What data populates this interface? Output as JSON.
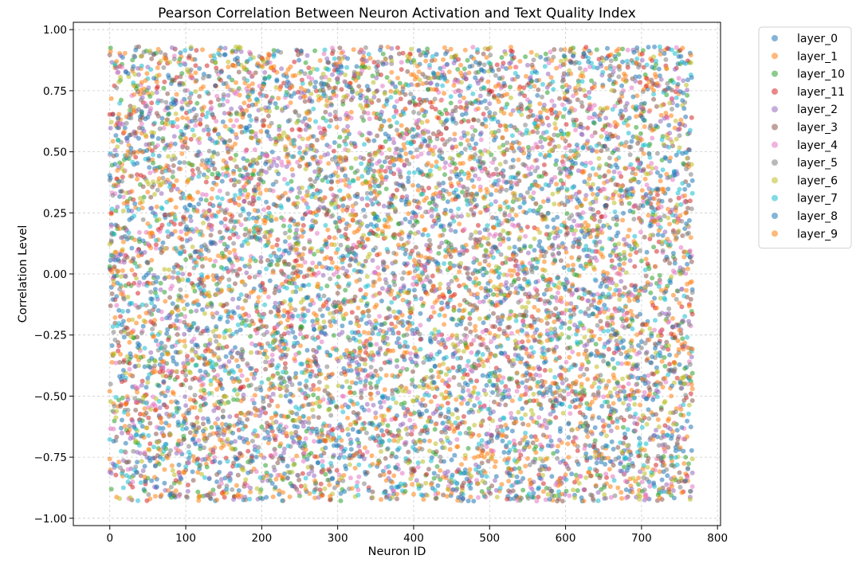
{
  "chart_data": {
    "type": "scatter",
    "title": "Pearson Correlation Between Neuron Activation and Text Quality Index",
    "xlabel": "Neuron ID",
    "ylabel": "Correlation Level",
    "xlim": [
      -48,
      804
    ],
    "ylim": [
      -1.03,
      1.03
    ],
    "xticks": [
      0,
      100,
      200,
      300,
      400,
      500,
      600,
      700,
      800
    ],
    "yticks": [
      -1.0,
      -0.75,
      -0.5,
      -0.25,
      0.0,
      0.25,
      0.5,
      0.75,
      1.0
    ],
    "xtick_labels": [
      "0",
      "100",
      "200",
      "300",
      "400",
      "500",
      "600",
      "700",
      "800"
    ],
    "ytick_labels": [
      "−1.00",
      "−0.75",
      "−0.50",
      "−0.25",
      "0.00",
      "0.25",
      "0.50",
      "0.75",
      "1.00"
    ],
    "grid": true,
    "legend_position": "outside-right",
    "neurons_per_layer": 768,
    "value_range": [
      -0.93,
      0.93
    ],
    "series": [
      {
        "name": "layer_0",
        "color": "#1f77b4",
        "seed": 11
      },
      {
        "name": "layer_1",
        "color": "#ff7f0e",
        "seed": 23
      },
      {
        "name": "layer_10",
        "color": "#2ca02c",
        "seed": 37
      },
      {
        "name": "layer_11",
        "color": "#d62728",
        "seed": 41
      },
      {
        "name": "layer_2",
        "color": "#9467bd",
        "seed": 53
      },
      {
        "name": "layer_3",
        "color": "#8c564b",
        "seed": 67
      },
      {
        "name": "layer_4",
        "color": "#e377c2",
        "seed": 71
      },
      {
        "name": "layer_5",
        "color": "#7f7f7f",
        "seed": 83
      },
      {
        "name": "layer_6",
        "color": "#bcbd22",
        "seed": 97
      },
      {
        "name": "layer_7",
        "color": "#17becf",
        "seed": 101
      },
      {
        "name": "layer_8",
        "color": "#1f77b4",
        "seed": 113
      },
      {
        "name": "layer_9",
        "color": "#ff7f0e",
        "seed": 127
      }
    ]
  }
}
